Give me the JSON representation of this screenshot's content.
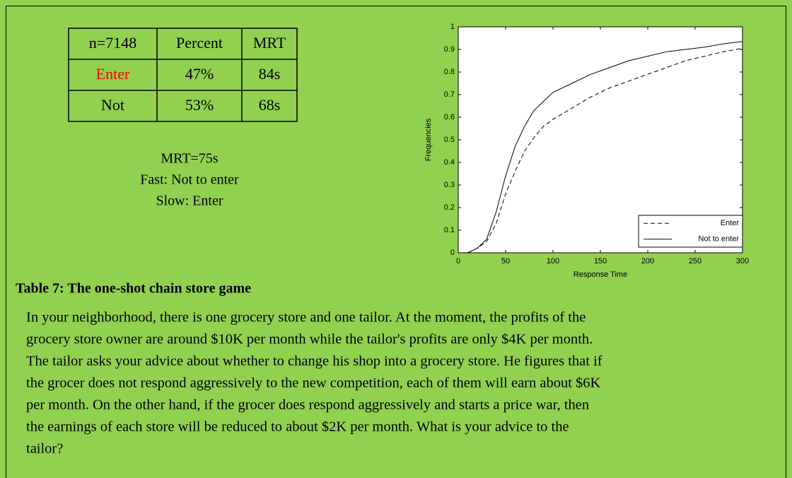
{
  "table": {
    "rows": [
      [
        "n=7148",
        "Percent",
        "MRT"
      ],
      [
        "Enter",
        "47%",
        "84s"
      ],
      [
        "Not",
        "53%",
        "68s"
      ]
    ]
  },
  "notes": [
    "MRT=75s",
    "Fast: Not to enter",
    "Slow: Enter"
  ],
  "chart_data": {
    "type": "line",
    "xlabel": "Response Time",
    "ylabel": "Frequencies",
    "x": [
      10,
      20,
      30,
      40,
      50,
      60,
      70,
      80,
      90,
      100,
      120,
      140,
      160,
      180,
      200,
      220,
      240,
      260,
      280,
      300
    ],
    "series": [
      {
        "name": "Enter",
        "color": "#000000",
        "style": "dashed",
        "values": [
          0,
          0.02,
          0.05,
          0.13,
          0.26,
          0.36,
          0.45,
          0.51,
          0.56,
          0.59,
          0.64,
          0.69,
          0.73,
          0.76,
          0.79,
          0.82,
          0.85,
          0.87,
          0.89,
          0.905
        ]
      },
      {
        "name": "Not to enter",
        "color": "#000000",
        "style": "solid",
        "values": [
          0,
          0.02,
          0.06,
          0.18,
          0.34,
          0.47,
          0.56,
          0.63,
          0.67,
          0.71,
          0.75,
          0.79,
          0.82,
          0.85,
          0.87,
          0.89,
          0.9,
          0.91,
          0.925,
          0.935
        ]
      }
    ],
    "xlim": [
      0,
      300
    ],
    "xticks": [
      0,
      50,
      100,
      150,
      200,
      250,
      300
    ],
    "ylim": [
      0,
      1
    ],
    "yticks": [
      0,
      0.1,
      0.2,
      0.3,
      0.4,
      0.5,
      0.6,
      0.7,
      0.8,
      0.9,
      1
    ],
    "legend": "lower right"
  },
  "caption": "Table 7: The one-shot chain store game",
  "paragraph": [
    "In your neighborhood, there is one grocery store and one tailor. At the moment, the profits of the",
    "grocery store owner are around $10K per month while the tailor's profits are only $4K per month.",
    "The tailor asks your advice about whether to change his shop into a grocery store. He figures that if",
    "the grocer does not respond aggressively to the new competition, each of them will earn about $6K",
    "per month. On the other hand, if the grocer does respond aggressively and starts a price war, then",
    "the earnings of each store will be reduced to about $2K per month. What is your advice to the",
    "tailor?"
  ]
}
